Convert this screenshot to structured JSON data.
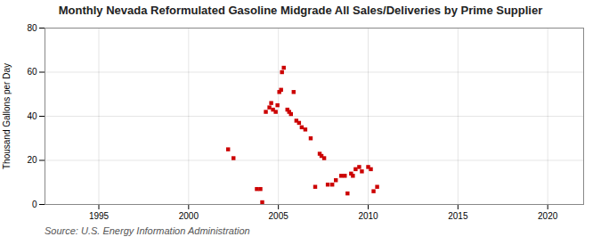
{
  "chart_data": {
    "type": "scatter",
    "title": "Monthly Nevada Reformulated Gasoline Midgrade All Sales/Deliveries by Prime Supplier",
    "ylabel": "Thousand Gallons per Day",
    "source": "Source: U.S. Energy Information Administration",
    "x": [
      2002.2,
      2002.5,
      2003.8,
      2004.0,
      2004.1,
      2004.3,
      2004.5,
      2004.6,
      2004.7,
      2004.85,
      2004.95,
      2005.05,
      2005.15,
      2005.2,
      2005.3,
      2005.5,
      2005.6,
      2005.7,
      2005.85,
      2006.0,
      2006.15,
      2006.3,
      2006.5,
      2006.8,
      2007.05,
      2007.3,
      2007.4,
      2007.55,
      2007.75,
      2008.0,
      2008.2,
      2008.5,
      2008.7,
      2008.85,
      2009.05,
      2009.15,
      2009.3,
      2009.5,
      2009.65,
      2010.0,
      2010.15,
      2010.3,
      2010.5
    ],
    "values": [
      25,
      21,
      7,
      7,
      1,
      42,
      44,
      46,
      43,
      42,
      45,
      51,
      52,
      60,
      62,
      43,
      42,
      41,
      51,
      38,
      37,
      35,
      34,
      30,
      8,
      23,
      22,
      21,
      9,
      9,
      11,
      13,
      13,
      5,
      14,
      13,
      16,
      17,
      15,
      17,
      16,
      6,
      8
    ],
    "color": "#cc0000",
    "marker": "square",
    "xlim": [
      1992,
      2022
    ],
    "ylim": [
      0,
      80
    ],
    "xticks": [
      1995,
      2000,
      2005,
      2010,
      2015,
      2020
    ],
    "yticks": [
      0,
      20,
      40,
      60,
      80
    ],
    "grid": true
  }
}
